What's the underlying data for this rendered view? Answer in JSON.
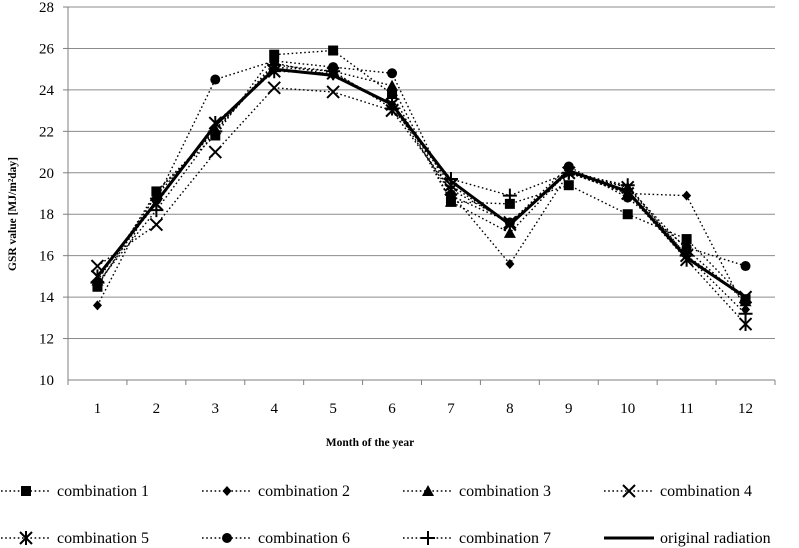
{
  "chart_data": {
    "type": "line",
    "title": "",
    "xlabel": "Month of the year",
    "ylabel": "GSR value [MJ/m²day]",
    "categories": [
      "1",
      "2",
      "3",
      "4",
      "5",
      "6",
      "7",
      "8",
      "9",
      "10",
      "11",
      "12"
    ],
    "ylim": [
      10,
      28
    ],
    "yticks": [
      "10",
      "12",
      "14",
      "16",
      "18",
      "20",
      "22",
      "24",
      "26",
      "28"
    ],
    "grid": true,
    "legend_position": "bottom",
    "series": [
      {
        "name": "combination 1",
        "marker": "square",
        "line_style": "dotted",
        "values": [
          14.5,
          19.1,
          21.8,
          25.7,
          25.9,
          23.8,
          18.6,
          18.5,
          19.4,
          18.0,
          16.8,
          13.9
        ]
      },
      {
        "name": "combination 2",
        "marker": "diamond",
        "line_style": "dotted",
        "values": [
          13.6,
          19.1,
          22.0,
          25.3,
          24.7,
          23.3,
          19.0,
          15.6,
          20.0,
          19.0,
          18.9,
          13.4
        ]
      },
      {
        "name": "combination 3",
        "marker": "triangle",
        "line_style": "dotted",
        "values": [
          14.8,
          18.9,
          22.1,
          25.1,
          24.9,
          24.2,
          18.6,
          17.1,
          20.1,
          19.3,
          16.3,
          13.8
        ]
      },
      {
        "name": "combination 4",
        "marker": "x",
        "line_style": "dotted",
        "values": [
          15.5,
          17.5,
          21.0,
          24.1,
          23.9,
          23.0,
          19.2,
          17.6,
          20.0,
          19.3,
          16.0,
          14.0
        ]
      },
      {
        "name": "combination 5",
        "marker": "asterisk",
        "line_style": "dotted",
        "values": [
          15.0,
          18.5,
          22.4,
          24.9,
          24.8,
          23.3,
          19.4,
          17.5,
          20.0,
          19.0,
          15.8,
          12.7
        ]
      },
      {
        "name": "combination 6",
        "marker": "circle",
        "line_style": "dotted",
        "values": [
          14.6,
          18.7,
          24.5,
          25.4,
          25.1,
          24.8,
          18.9,
          17.6,
          20.3,
          18.8,
          16.4,
          15.5
        ]
      },
      {
        "name": "combination 7",
        "marker": "plus",
        "line_style": "dotted",
        "values": [
          14.7,
          18.2,
          22.0,
          25.2,
          24.9,
          23.1,
          19.7,
          18.9,
          20.0,
          19.4,
          16.0,
          13.2
        ]
      },
      {
        "name": "original radiation",
        "marker": "none",
        "line_style": "solid",
        "values": [
          15.0,
          18.6,
          22.3,
          25.0,
          24.7,
          23.3,
          19.6,
          17.5,
          20.1,
          19.1,
          15.9,
          14.0
        ]
      }
    ]
  }
}
